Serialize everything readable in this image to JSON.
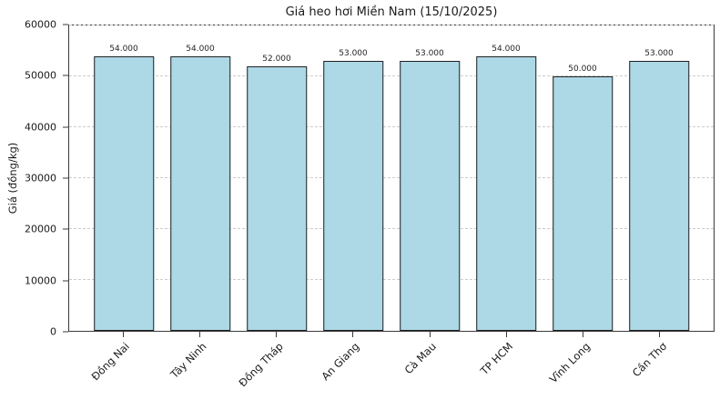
{
  "chart_data": {
    "type": "bar",
    "title": "Giá heo hơi Miền Nam (15/10/2025)",
    "xlabel": "",
    "ylabel": "Giá (đồng/kg)",
    "categories": [
      "Đồng Nai",
      "Tây Ninh",
      "Đồng Tháp",
      "An Giang",
      "Cà Mau",
      "TP HCM",
      "Vĩnh Long",
      "Cần Thơ"
    ],
    "values": [
      54000,
      54000,
      52000,
      53000,
      53000,
      54000,
      50000,
      53000
    ],
    "value_labels": [
      "54.000",
      "54.000",
      "52.000",
      "53.000",
      "53.000",
      "54.000",
      "50.000",
      "53.000"
    ],
    "ylim": [
      0,
      60000
    ],
    "yticks": [
      0,
      10000,
      20000,
      30000,
      40000,
      50000,
      60000
    ],
    "ytick_labels": [
      "0",
      "10000",
      "20000",
      "30000",
      "40000",
      "50000",
      "60000"
    ],
    "legend": "none",
    "grid": "horizontal-dashed",
    "bar_color": "#add8e6",
    "bar_edge_color": "#1f1f1f"
  }
}
